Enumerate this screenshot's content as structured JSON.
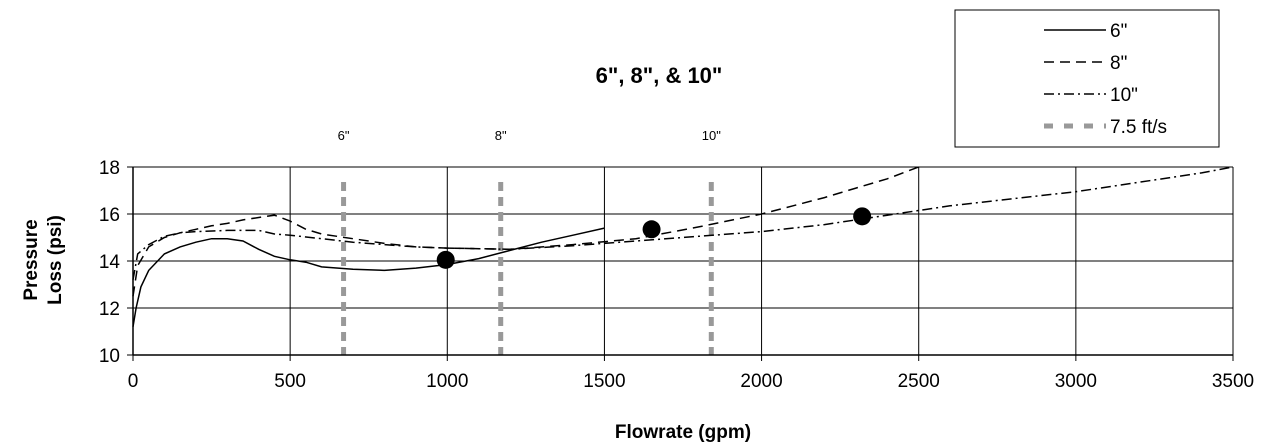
{
  "chart_data": {
    "type": "line",
    "title": "6\", 8\", & 10\"",
    "xlabel": "Flowrate (gpm)",
    "ylabel_lines": [
      "Pressure",
      "Loss (psi)"
    ],
    "xlim": [
      0,
      3500
    ],
    "ylim": [
      10,
      18
    ],
    "x_ticks": [
      0,
      500,
      1000,
      1500,
      2000,
      2500,
      3000,
      3500
    ],
    "y_ticks": [
      10,
      12,
      14,
      16,
      18
    ],
    "grid": true,
    "legend_position": "top-right",
    "series": [
      {
        "name": "6\"",
        "style": "solid",
        "points": [
          [
            0,
            11.2
          ],
          [
            10,
            12.0
          ],
          [
            25,
            12.9
          ],
          [
            50,
            13.6
          ],
          [
            100,
            14.3
          ],
          [
            150,
            14.6
          ],
          [
            200,
            14.8
          ],
          [
            250,
            14.95
          ],
          [
            300,
            14.95
          ],
          [
            350,
            14.85
          ],
          [
            400,
            14.5
          ],
          [
            450,
            14.2
          ],
          [
            500,
            14.05
          ],
          [
            550,
            13.95
          ],
          [
            600,
            13.75
          ],
          [
            700,
            13.65
          ],
          [
            800,
            13.6
          ],
          [
            900,
            13.7
          ],
          [
            1000,
            13.85
          ],
          [
            1100,
            14.1
          ],
          [
            1200,
            14.45
          ],
          [
            1300,
            14.8
          ],
          [
            1400,
            15.1
          ],
          [
            1500,
            15.4
          ]
        ]
      },
      {
        "name": "8\"",
        "style": "dashed",
        "points": [
          [
            0,
            12.5
          ],
          [
            15,
            13.8
          ],
          [
            50,
            14.6
          ],
          [
            100,
            15.0
          ],
          [
            150,
            15.2
          ],
          [
            200,
            15.35
          ],
          [
            250,
            15.5
          ],
          [
            300,
            15.6
          ],
          [
            350,
            15.75
          ],
          [
            400,
            15.85
          ],
          [
            450,
            15.95
          ],
          [
            500,
            15.7
          ],
          [
            550,
            15.35
          ],
          [
            600,
            15.15
          ],
          [
            700,
            14.95
          ],
          [
            800,
            14.75
          ],
          [
            900,
            14.6
          ],
          [
            1000,
            14.55
          ],
          [
            1200,
            14.5
          ],
          [
            1400,
            14.7
          ],
          [
            1600,
            14.95
          ],
          [
            1800,
            15.45
          ],
          [
            2000,
            16.0
          ],
          [
            2100,
            16.35
          ],
          [
            2200,
            16.7
          ],
          [
            2300,
            17.1
          ],
          [
            2400,
            17.5
          ],
          [
            2500,
            18.0
          ]
        ]
      },
      {
        "name": "10\"",
        "style": "dashdot",
        "points": [
          [
            0,
            13.2
          ],
          [
            15,
            14.3
          ],
          [
            50,
            14.7
          ],
          [
            100,
            15.05
          ],
          [
            150,
            15.2
          ],
          [
            200,
            15.25
          ],
          [
            300,
            15.3
          ],
          [
            400,
            15.3
          ],
          [
            450,
            15.15
          ],
          [
            500,
            15.1
          ],
          [
            600,
            14.95
          ],
          [
            700,
            14.8
          ],
          [
            800,
            14.7
          ],
          [
            900,
            14.6
          ],
          [
            1000,
            14.55
          ],
          [
            1200,
            14.5
          ],
          [
            1400,
            14.65
          ],
          [
            1600,
            14.85
          ],
          [
            1800,
            15.05
          ],
          [
            2000,
            15.25
          ],
          [
            2200,
            15.55
          ],
          [
            2400,
            15.95
          ],
          [
            2600,
            16.35
          ],
          [
            2800,
            16.65
          ],
          [
            3000,
            16.95
          ],
          [
            3200,
            17.35
          ],
          [
            3400,
            17.75
          ],
          [
            3500,
            18.0
          ]
        ]
      }
    ],
    "markers": [
      {
        "x": 995,
        "y": 14.05
      },
      {
        "x": 1650,
        "y": 15.35
      },
      {
        "x": 2320,
        "y": 15.9
      }
    ],
    "reference_lines": {
      "legend_name": "7.5 ft/s",
      "lines": [
        {
          "x": 670,
          "label": "6\""
        },
        {
          "x": 1170,
          "label": "8\""
        },
        {
          "x": 1840,
          "label": "10\""
        }
      ]
    }
  }
}
